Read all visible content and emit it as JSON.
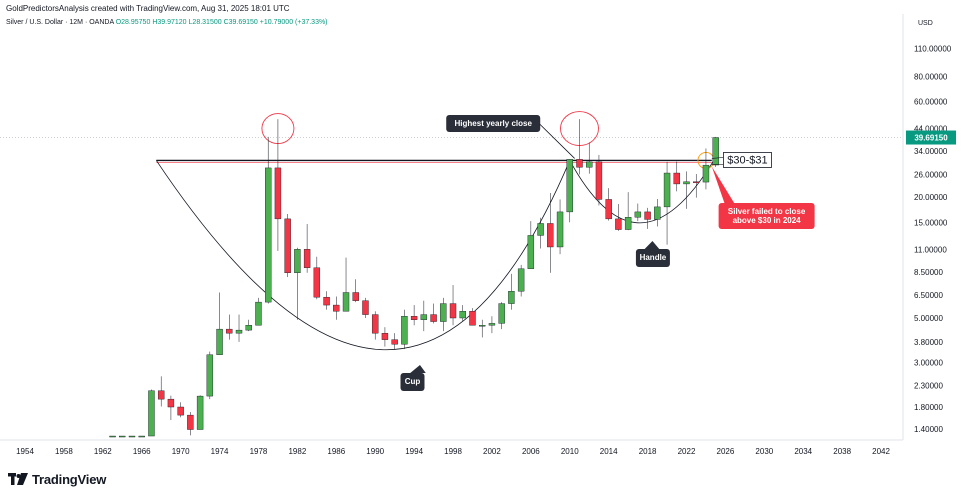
{
  "header": {
    "author_line": "GoldPredictorsAnalysis created with TradingView.com, Aug 31, 2025 18:01 UTC",
    "symbol": "Silver / U.S. Dollar · 12M · OANDA",
    "open": "O28.95750",
    "high": "H39.97120",
    "low": "L28.31500",
    "close": "C39.69150",
    "change": "+10.79000 (+37.33%)",
    "currency": "USD"
  },
  "brand": {
    "name": "TradingView"
  },
  "colors": {
    "up": "#089981",
    "down": "#f23645",
    "up_body": "#4caf50",
    "down_body": "#f23645"
  },
  "chart_data": {
    "type": "candlestick",
    "scale": "log",
    "y_ticks": [
      1.4,
      1.8,
      2.3,
      3.0,
      3.8,
      5.0,
      6.5,
      8.5,
      11.0,
      15.0,
      20.0,
      26.0,
      34.0,
      44.0,
      60.0,
      80.0,
      110.0
    ],
    "y_tick_labels": [
      "1.40000",
      "1.80000",
      "2.30000",
      "3.00000",
      "3.80000",
      "5.00000",
      "6.50000",
      "8.50000",
      "11.00000",
      "15.00000",
      "20.00000",
      "26.00000",
      "34.00000",
      "44.00000",
      "60.00000",
      "80.00000",
      "110.00000"
    ],
    "x_ticks": [
      1954,
      1958,
      1962,
      1966,
      1970,
      1974,
      1978,
      1982,
      1986,
      1990,
      1994,
      1998,
      2002,
      2006,
      2010,
      2014,
      2018,
      2022,
      2026,
      2030,
      2034,
      2038,
      2042
    ],
    "last_price_label": "39.69150",
    "last_price": 39.69,
    "resistance": 30.5,
    "annotations": {
      "highest_yearly_close": "Highest yearly close",
      "cup": "Cup",
      "handle": "Handle",
      "zone": "$30-$31",
      "failed_close": [
        "Silver failed to close",
        "above $30 in 2024"
      ]
    },
    "candles": [
      [
        1963,
        1.29,
        1.29,
        1.29,
        1.29
      ],
      [
        1964,
        1.29,
        1.29,
        1.29,
        1.29
      ],
      [
        1965,
        1.29,
        1.29,
        1.29,
        1.29
      ],
      [
        1966,
        1.29,
        1.29,
        1.29,
        1.29
      ],
      [
        1967,
        1.29,
        2.2,
        1.29,
        2.17
      ],
      [
        1968,
        2.17,
        2.56,
        1.81,
        1.97
      ],
      [
        1969,
        1.97,
        2.05,
        1.55,
        1.8
      ],
      [
        1970,
        1.8,
        1.9,
        1.6,
        1.64
      ],
      [
        1971,
        1.64,
        1.7,
        1.3,
        1.39
      ],
      [
        1972,
        1.39,
        2.06,
        1.39,
        2.04
      ],
      [
        1973,
        2.04,
        3.4,
        1.97,
        3.28
      ],
      [
        1974,
        3.28,
        6.7,
        3.28,
        4.4
      ],
      [
        1975,
        4.4,
        5.2,
        3.9,
        4.2
      ],
      [
        1976,
        4.2,
        5.2,
        3.8,
        4.35
      ],
      [
        1977,
        4.35,
        4.9,
        4.3,
        4.6
      ],
      [
        1978,
        4.6,
        6.3,
        4.8,
        6.0
      ],
      [
        1979,
        6.0,
        40.0,
        5.9,
        28.0
      ],
      [
        1980,
        28.0,
        49.0,
        10.8,
        15.6
      ],
      [
        1981,
        15.6,
        16.5,
        8.0,
        8.4
      ],
      [
        1982,
        8.4,
        11.2,
        4.9,
        11.0
      ],
      [
        1983,
        11.0,
        14.7,
        8.4,
        8.9
      ],
      [
        1984,
        8.9,
        10.1,
        6.2,
        6.35
      ],
      [
        1985,
        6.35,
        6.8,
        5.5,
        5.8
      ],
      [
        1986,
        5.8,
        6.4,
        4.9,
        5.4
      ],
      [
        1987,
        5.4,
        10.0,
        5.4,
        6.7
      ],
      [
        1988,
        6.7,
        7.8,
        6.0,
        6.1
      ],
      [
        1989,
        6.1,
        6.3,
        5.0,
        5.2
      ],
      [
        1990,
        5.2,
        5.4,
        3.9,
        4.2
      ],
      [
        1991,
        4.2,
        4.5,
        3.6,
        3.9
      ],
      [
        1992,
        3.9,
        4.2,
        3.5,
        3.7
      ],
      [
        1993,
        3.7,
        5.5,
        3.5,
        5.1
      ],
      [
        1994,
        5.1,
        5.8,
        4.6,
        4.9
      ],
      [
        1995,
        4.9,
        6.1,
        4.3,
        5.2
      ],
      [
        1996,
        5.2,
        5.9,
        4.7,
        4.8
      ],
      [
        1997,
        4.8,
        6.3,
        4.3,
        5.9
      ],
      [
        1998,
        5.9,
        7.3,
        4.6,
        5.0
      ],
      [
        1999,
        5.0,
        5.8,
        4.8,
        5.4
      ],
      [
        2000,
        5.4,
        5.6,
        4.6,
        4.6
      ],
      [
        2001,
        4.6,
        4.9,
        4.0,
        4.6
      ],
      [
        2002,
        4.6,
        5.1,
        4.2,
        4.7
      ],
      [
        2003,
        4.7,
        6.0,
        4.4,
        5.9
      ],
      [
        2004,
        5.9,
        8.3,
        5.5,
        6.8
      ],
      [
        2005,
        6.8,
        9.2,
        6.4,
        8.8
      ],
      [
        2006,
        8.8,
        15.2,
        8.8,
        12.9
      ],
      [
        2007,
        12.9,
        15.8,
        11.1,
        14.8
      ],
      [
        2008,
        14.8,
        21.0,
        8.4,
        11.3
      ],
      [
        2009,
        11.3,
        19.5,
        10.4,
        16.9
      ],
      [
        2010,
        16.9,
        31.0,
        15.0,
        30.9
      ],
      [
        2011,
        30.9,
        49.0,
        26.0,
        28.2
      ],
      [
        2012,
        28.2,
        37.5,
        26.2,
        30.0
      ],
      [
        2013,
        30.0,
        32.5,
        18.2,
        19.5
      ],
      [
        2014,
        19.5,
        22.2,
        15.3,
        15.6
      ],
      [
        2015,
        15.6,
        18.5,
        13.6,
        13.8
      ],
      [
        2016,
        13.8,
        21.2,
        13.7,
        15.9
      ],
      [
        2017,
        15.9,
        18.6,
        15.2,
        16.9
      ],
      [
        2018,
        16.9,
        17.7,
        13.9,
        15.5
      ],
      [
        2019,
        15.5,
        19.6,
        14.3,
        17.9
      ],
      [
        2020,
        17.9,
        30.0,
        11.6,
        26.4
      ],
      [
        2021,
        26.4,
        30.1,
        21.4,
        23.3
      ],
      [
        2022,
        23.3,
        26.9,
        17.5,
        23.9
      ],
      [
        2023,
        23.9,
        26.1,
        19.9,
        23.8
      ],
      [
        2024,
        23.8,
        35.0,
        21.9,
        28.9
      ],
      [
        2025,
        28.95,
        39.97,
        28.31,
        39.69
      ]
    ]
  }
}
